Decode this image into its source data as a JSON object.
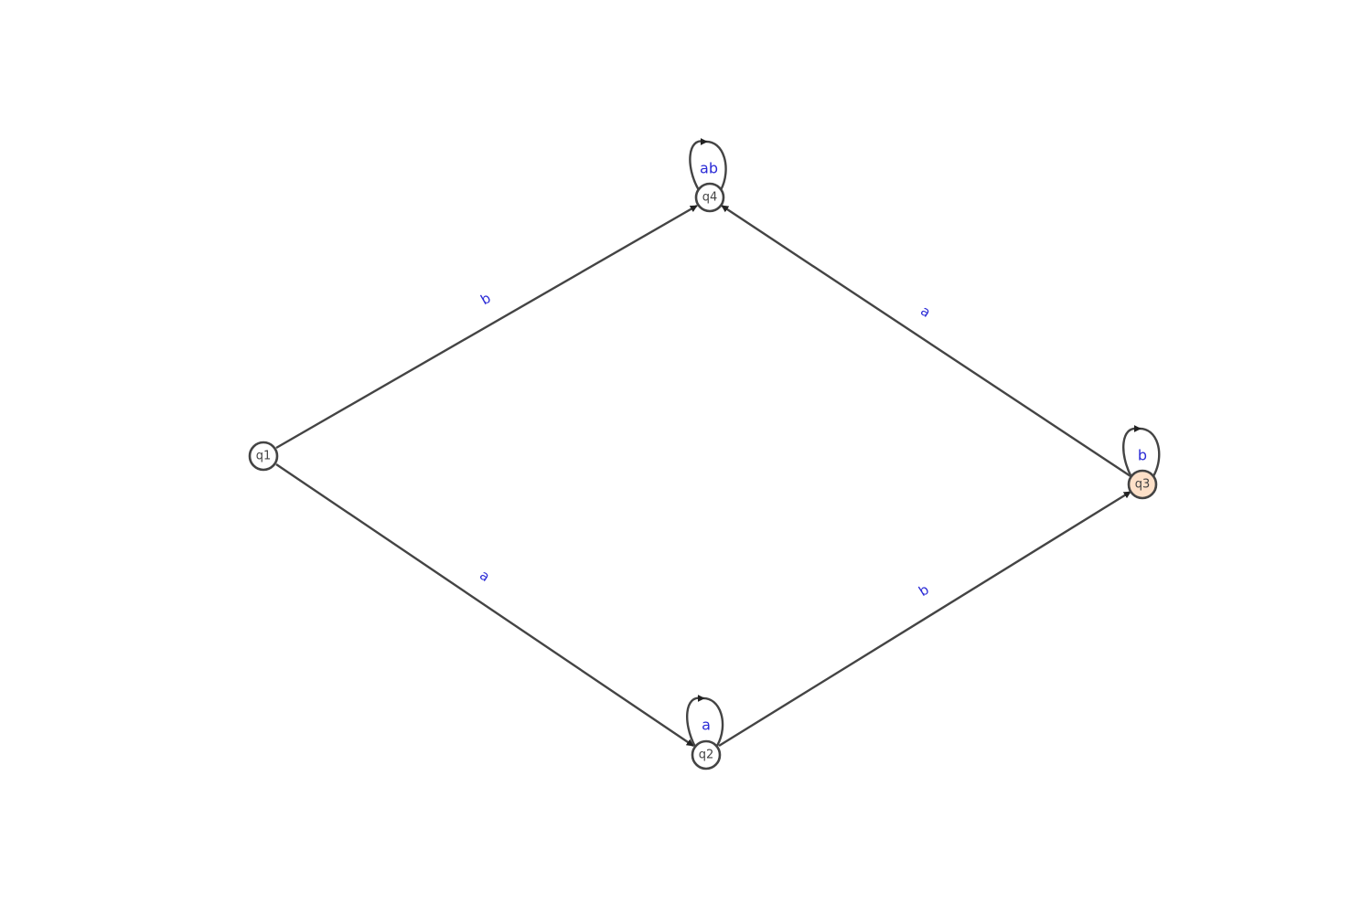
{
  "diagram": {
    "type": "finite-automaton",
    "colors": {
      "edge": "#444444",
      "label": "#2b2bd6",
      "node_fill": "#ffffff",
      "accepting_fill": "#fde0c8"
    },
    "states": [
      {
        "id": "q1",
        "label": "q1",
        "accepting": false
      },
      {
        "id": "q2",
        "label": "q2",
        "accepting": false
      },
      {
        "id": "q3",
        "label": "q3",
        "accepting": true
      },
      {
        "id": "q4",
        "label": "q4",
        "accepting": false
      }
    ],
    "transitions": [
      {
        "from": "q1",
        "to": "q4",
        "label": "b"
      },
      {
        "from": "q1",
        "to": "q2",
        "label": "a"
      },
      {
        "from": "q2",
        "to": "q3",
        "label": "b"
      },
      {
        "from": "q3",
        "to": "q4",
        "label": "a"
      }
    ],
    "self_loops": [
      {
        "state": "q4",
        "label": "ab"
      },
      {
        "state": "q2",
        "label": "a"
      },
      {
        "state": "q3",
        "label": "b"
      }
    ]
  }
}
